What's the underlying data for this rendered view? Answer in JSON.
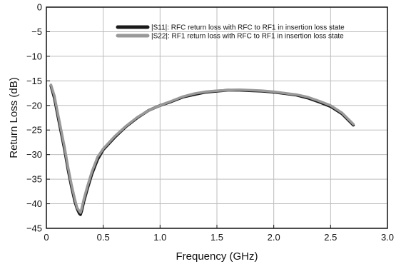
{
  "chart_data": {
    "type": "line",
    "xlabel": "Frequency (GHz)",
    "ylabel": "Return Loss (dB)",
    "xlim": [
      0,
      3.0
    ],
    "ylim": [
      -45,
      0
    ],
    "x_ticks": [
      0,
      0.5,
      1.0,
      1.5,
      2.0,
      2.5,
      3.0
    ],
    "x_tick_labels": [
      "0",
      "0.5",
      "1.0",
      "1.5",
      "2.0",
      "2.5",
      "3.0"
    ],
    "y_ticks": [
      0,
      -5,
      -10,
      -15,
      -20,
      -25,
      -30,
      -35,
      -40,
      -45
    ],
    "y_tick_labels": [
      "0",
      "−5",
      "−10",
      "−15",
      "−20",
      "−25",
      "−30",
      "−35",
      "−40",
      "−45"
    ],
    "grid": true,
    "legend_position": "top-right",
    "series": [
      {
        "name": "|S11|: RFC return loss with RFC to RF1 in insertion loss state",
        "color": "#1a1a1a",
        "x": [
          0.04,
          0.07,
          0.1,
          0.13,
          0.16,
          0.19,
          0.22,
          0.25,
          0.27,
          0.29,
          0.3,
          0.31,
          0.33,
          0.36,
          0.4,
          0.45,
          0.5,
          0.6,
          0.7,
          0.8,
          0.9,
          1.0,
          1.1,
          1.2,
          1.3,
          1.4,
          1.5,
          1.6,
          1.7,
          1.8,
          1.9,
          2.0,
          2.1,
          2.2,
          2.3,
          2.4,
          2.5,
          2.6,
          2.7
        ],
        "y": [
          -16.0,
          -18.5,
          -22.0,
          -25.5,
          -29.0,
          -33.0,
          -36.5,
          -39.5,
          -41.0,
          -42.0,
          -42.2,
          -41.5,
          -39.5,
          -37.0,
          -34.0,
          -31.0,
          -29.0,
          -26.5,
          -24.3,
          -22.5,
          -21.0,
          -20.0,
          -19.2,
          -18.3,
          -17.8,
          -17.3,
          -17.1,
          -16.9,
          -16.9,
          -17.0,
          -17.1,
          -17.3,
          -17.6,
          -17.9,
          -18.5,
          -19.3,
          -20.2,
          -21.7,
          -24.0
        ]
      },
      {
        "name": "|S22|: RF1 return loss with RFC to RF1 in insertion loss state",
        "color": "#999999",
        "x": [
          0.04,
          0.07,
          0.1,
          0.13,
          0.16,
          0.19,
          0.22,
          0.25,
          0.27,
          0.29,
          0.3,
          0.31,
          0.33,
          0.36,
          0.4,
          0.45,
          0.5,
          0.6,
          0.7,
          0.8,
          0.9,
          1.0,
          1.1,
          1.2,
          1.3,
          1.4,
          1.5,
          1.6,
          1.7,
          1.8,
          1.9,
          2.0,
          2.1,
          2.2,
          2.3,
          2.4,
          2.5,
          2.6,
          2.7
        ],
        "y": [
          -15.8,
          -18.0,
          -21.5,
          -25.0,
          -28.5,
          -32.5,
          -36.0,
          -39.0,
          -40.8,
          -41.5,
          -41.8,
          -41.0,
          -39.0,
          -36.5,
          -33.5,
          -30.5,
          -28.8,
          -26.3,
          -24.2,
          -22.4,
          -21.0,
          -20.0,
          -19.1,
          -18.2,
          -17.6,
          -17.2,
          -17.0,
          -16.9,
          -16.8,
          -16.9,
          -17.0,
          -17.2,
          -17.5,
          -17.8,
          -18.3,
          -19.1,
          -20.0,
          -21.5,
          -23.8
        ]
      }
    ]
  }
}
